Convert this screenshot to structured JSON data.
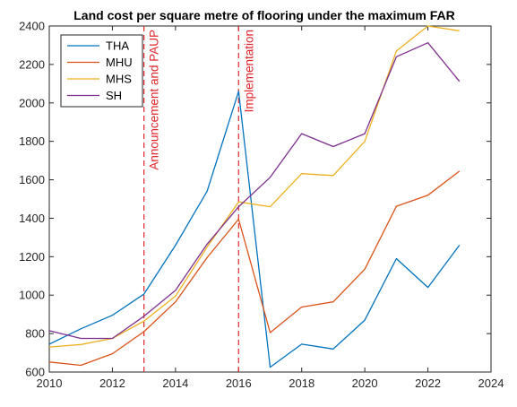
{
  "chart_data": {
    "type": "line",
    "title": "Land cost per square metre of flooring under the maximum FAR",
    "xlabel": "",
    "ylabel": "",
    "xlim": [
      2010,
      2024
    ],
    "ylim": [
      600,
      2400
    ],
    "x_ticks": [
      2010,
      2012,
      2014,
      2016,
      2018,
      2020,
      2022,
      2024
    ],
    "y_ticks": [
      600,
      800,
      1000,
      1200,
      1400,
      1600,
      1800,
      2000,
      2200,
      2400
    ],
    "grid": false,
    "legend_position": "top-left",
    "x": [
      2010,
      2011,
      2012,
      2013,
      2014,
      2015,
      2016,
      2017,
      2018,
      2019,
      2020,
      2021,
      2022,
      2023
    ],
    "series": [
      {
        "name": "THA",
        "color": "#0072bd",
        "values": [
          745,
          825,
          895,
          1005,
          1260,
          1540,
          2060,
          625,
          745,
          720,
          870,
          1190,
          1040,
          1260
        ]
      },
      {
        "name": "MHU",
        "color": "#d95319",
        "values": [
          652,
          635,
          695,
          810,
          965,
          1195,
          1395,
          805,
          938,
          965,
          1135,
          1462,
          1520,
          1645
        ]
      },
      {
        "name": "MHS",
        "color": "#edb120",
        "values": [
          730,
          743,
          775,
          865,
          995,
          1250,
          1485,
          1460,
          1632,
          1622,
          1800,
          2270,
          2400,
          2375
        ]
      },
      {
        "name": "SH",
        "color": "#7e2f8e",
        "values": [
          815,
          775,
          775,
          890,
          1025,
          1265,
          1460,
          1613,
          1840,
          1773,
          1840,
          2240,
          2313,
          2112
        ]
      }
    ],
    "annotations": [
      {
        "x": 2013,
        "text": "Announcement and PAUP",
        "color": "#e0262b",
        "style": "dashed"
      },
      {
        "x": 2016,
        "text": "Implementation",
        "color": "#e0262b",
        "style": "dashed"
      }
    ]
  }
}
